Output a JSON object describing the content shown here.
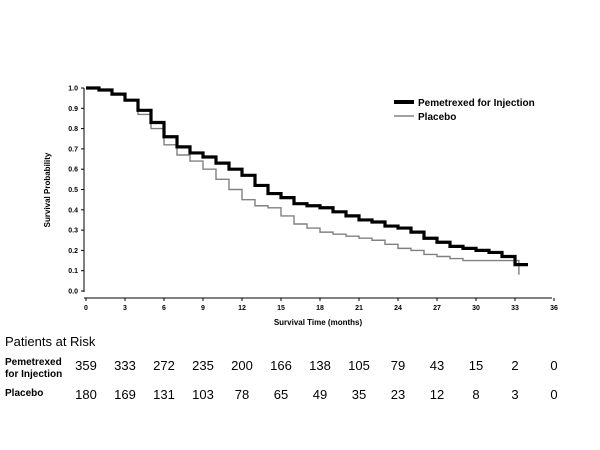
{
  "chart_data": {
    "type": "line",
    "title": "",
    "xlabel": "Survival Time (months)",
    "ylabel": "Survival  Probability",
    "xlim": [
      0,
      36
    ],
    "ylim": [
      0,
      1
    ],
    "xticks": [
      "0",
      "3",
      "6",
      "9",
      "12",
      "15",
      "18",
      "21",
      "24",
      "27",
      "30",
      "33",
      "36"
    ],
    "yticks": [
      "0.0",
      "0.1",
      "0.2",
      "0.3",
      "0.4",
      "0.5",
      "0.6",
      "0.7",
      "0.8",
      "0.9",
      "1.0"
    ],
    "legend_position": "top-right",
    "series": [
      {
        "name": "Pemetrexed for Injection",
        "color": "#000000",
        "style": "thick",
        "x": [
          0,
          1,
          2,
          3,
          4,
          5,
          6,
          7,
          8,
          9,
          10,
          11,
          12,
          13,
          14,
          15,
          16,
          17,
          18,
          19,
          20,
          21,
          22,
          23,
          24,
          25,
          26,
          27,
          28,
          29,
          30,
          31,
          32,
          33,
          34
        ],
        "y": [
          1.0,
          0.99,
          0.97,
          0.94,
          0.89,
          0.83,
          0.76,
          0.71,
          0.68,
          0.66,
          0.63,
          0.6,
          0.57,
          0.52,
          0.48,
          0.46,
          0.43,
          0.42,
          0.41,
          0.39,
          0.37,
          0.35,
          0.34,
          0.32,
          0.31,
          0.29,
          0.26,
          0.24,
          0.22,
          0.21,
          0.2,
          0.19,
          0.17,
          0.13,
          0.13
        ]
      },
      {
        "name": "Placebo",
        "color": "#808080",
        "style": "thin",
        "x": [
          0,
          1,
          2,
          3,
          4,
          5,
          6,
          7,
          8,
          9,
          10,
          11,
          12,
          13,
          14,
          15,
          16,
          17,
          18,
          19,
          20,
          21,
          22,
          23,
          24,
          25,
          26,
          27,
          28,
          29,
          30,
          31,
          32,
          33,
          33.3
        ],
        "y": [
          1.0,
          0.99,
          0.97,
          0.94,
          0.87,
          0.8,
          0.72,
          0.67,
          0.64,
          0.6,
          0.55,
          0.5,
          0.45,
          0.42,
          0.41,
          0.37,
          0.33,
          0.31,
          0.29,
          0.28,
          0.27,
          0.26,
          0.25,
          0.23,
          0.21,
          0.2,
          0.18,
          0.17,
          0.16,
          0.15,
          0.15,
          0.15,
          0.15,
          0.15,
          0.08
        ]
      }
    ]
  },
  "risk_table": {
    "title": "Patients at Risk",
    "rows": [
      {
        "label_line1": "Pemetrexed",
        "label_line2": "for Injection",
        "values": [
          "359",
          "333",
          "272",
          "235",
          "200",
          "166",
          "138",
          "105",
          "79",
          "43",
          "15",
          "2",
          "0"
        ]
      },
      {
        "label_line1": "Placebo",
        "label_line2": "",
        "values": [
          "180",
          "169",
          "131",
          "103",
          "78",
          "65",
          "49",
          "35",
          "23",
          "12",
          "8",
          "3",
          "0"
        ]
      }
    ]
  }
}
